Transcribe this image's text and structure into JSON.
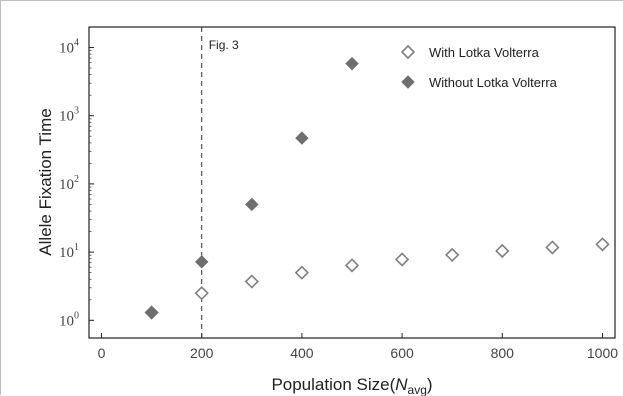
{
  "chart_data": {
    "type": "scatter",
    "title": "",
    "xlabel": "Population Size",
    "xlabel_symbol": "N",
    "xlabel_subscript": "avg",
    "ylabel": "Allele Fixation Time",
    "xlim": [
      -25,
      1025
    ],
    "ylim": [
      0.55,
      20000
    ],
    "yscale": "log",
    "x_ticks": [
      0,
      200,
      400,
      600,
      800,
      1000
    ],
    "y_tick_exponents": [
      0,
      1,
      2,
      3,
      4
    ],
    "grid": false,
    "legend_position": "top-right",
    "series": [
      {
        "name": "With Lotka Volterra",
        "marker": "open-diamond",
        "color": "#808080",
        "x": [
          100,
          200,
          300,
          400,
          500,
          600,
          700,
          800,
          900,
          1000
        ],
        "y": [
          1.3,
          2.5,
          3.7,
          5.0,
          6.4,
          7.8,
          9.1,
          10.4,
          11.7,
          13.0
        ]
      },
      {
        "name": "Without Lotka Volterra",
        "marker": "filled-diamond",
        "color": "#6e6e6e",
        "x": [
          100,
          200,
          300,
          400,
          500
        ],
        "y": [
          1.3,
          7.2,
          50,
          470,
          5800
        ]
      }
    ],
    "annotations": [
      {
        "type": "vline",
        "x": 200,
        "style": "dashed",
        "label": "Fig. 3"
      }
    ]
  }
}
